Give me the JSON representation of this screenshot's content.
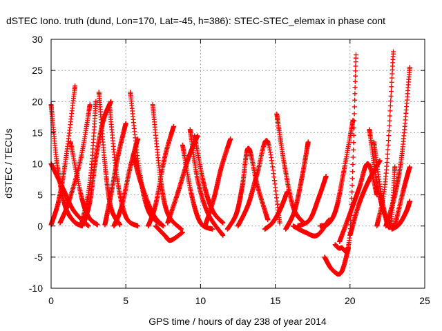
{
  "chart_data": {
    "type": "scatter",
    "title": "dSTEC Iono. truth (dund, Lon=170, Lat=-45, h=386): STEC-STEC_elemax in phase cont",
    "xlabel": "GPS time / hours of day 238 of year 2014",
    "ylabel": "dSTEC  / TECUs",
    "xlim": [
      0,
      25
    ],
    "ylim": [
      -10,
      30
    ],
    "x_ticks": [
      0,
      5,
      10,
      15,
      20,
      25
    ],
    "y_ticks": [
      -10,
      -5,
      0,
      5,
      10,
      15,
      20,
      25,
      30
    ],
    "grid": true,
    "marker": "+",
    "color": "#ff0000",
    "series": [
      {
        "x": [
          0.0,
          0.5,
          1.0,
          1.6
        ],
        "y": [
          0.2,
          4.0,
          11.0,
          22.5
        ]
      },
      {
        "x": [
          0.0,
          0.4,
          0.9,
          1.5,
          2.1
        ],
        "y": [
          19.5,
          10.0,
          3.5,
          0.8,
          0.0
        ]
      },
      {
        "x": [
          0.0,
          0.8,
          1.5,
          2.5
        ],
        "y": [
          10.0,
          6.0,
          2.5,
          0.0
        ]
      },
      {
        "x": [
          0.6,
          1.2,
          2.0,
          2.6
        ],
        "y": [
          0.5,
          4.0,
          11.0,
          19.5
        ]
      },
      {
        "x": [
          1.3,
          2.0,
          2.5,
          3.1
        ],
        "y": [
          13.5,
          5.0,
          1.5,
          0.2
        ]
      },
      {
        "x": [
          2.0,
          2.6,
          3.0
        ],
        "y": [
          0.0,
          7.0,
          20.0
        ]
      },
      {
        "x": [
          3.2,
          3.6,
          4.0,
          4.6
        ],
        "y": [
          21.5,
          10.0,
          3.0,
          0.2
        ]
      },
      {
        "x": [
          2.2,
          2.6,
          3.0,
          3.5,
          4.0
        ],
        "y": [
          0.5,
          4.0,
          11.0,
          17.0,
          20.0
        ]
      },
      {
        "x": [
          3.6,
          4.0,
          4.5,
          5.0
        ],
        "y": [
          0.2,
          5.0,
          11.5,
          16.5
        ]
      },
      {
        "x": [
          3.9,
          4.4,
          5.0,
          5.8
        ],
        "y": [
          19.5,
          8.0,
          1.5,
          0.0
        ]
      },
      {
        "x": [
          4.2,
          4.7,
          5.3,
          5.8
        ],
        "y": [
          0.0,
          3.0,
          9.5,
          14.0
        ]
      },
      {
        "x": [
          5.3,
          5.9,
          6.5,
          7.3
        ],
        "y": [
          21.5,
          9.0,
          2.5,
          0.3
        ]
      },
      {
        "x": [
          5.5,
          6.0,
          6.8,
          7.5
        ],
        "y": [
          11.5,
          7.0,
          2.0,
          0.0
        ]
      },
      {
        "x": [
          6.5,
          7.0,
          7.6,
          8.2
        ],
        "y": [
          0.0,
          3.5,
          11.0,
          16.0
        ]
      },
      {
        "x": [
          6.8,
          7.3,
          7.8,
          8.7
        ],
        "y": [
          19.5,
          8.0,
          2.0,
          -0.5
        ]
      },
      {
        "x": [
          7.0,
          7.6,
          8.0,
          8.8
        ],
        "y": [
          0.0,
          -1.5,
          -2.3,
          -1.0
        ]
      },
      {
        "x": [
          7.8,
          8.5,
          9.2,
          9.8
        ],
        "y": [
          0.5,
          5.5,
          11.0,
          14.5
        ]
      },
      {
        "x": [
          8.8,
          9.4,
          10.0,
          10.8
        ],
        "y": [
          13.0,
          5.0,
          0.5,
          -0.5
        ]
      },
      {
        "x": [
          9.3,
          9.8,
          10.5,
          11.5
        ],
        "y": [
          15.5,
          7.5,
          2.0,
          -1.5
        ]
      },
      {
        "x": [
          9.6,
          10.2,
          10.8,
          11.5
        ],
        "y": [
          14.5,
          7.0,
          2.5,
          0.5
        ]
      },
      {
        "x": [
          10.3,
          10.9,
          11.4,
          12.0
        ],
        "y": [
          0.0,
          4.5,
          9.5,
          14.0
        ]
      },
      {
        "x": [
          11.8,
          12.4,
          12.8,
          13.2,
          13.8,
          14.5
        ],
        "y": [
          -0.5,
          2.0,
          6.5,
          12.5,
          6.5,
          1.0
        ]
      },
      {
        "x": [
          12.5,
          13.2,
          13.8,
          14.5,
          15.3
        ],
        "y": [
          0.0,
          3.5,
          8.5,
          13.5,
          0.5
        ]
      },
      {
        "x": [
          14.3,
          14.8,
          15.3,
          15.8
        ],
        "y": [
          -0.5,
          0.5,
          2.5,
          5.5
        ]
      },
      {
        "x": [
          15.1,
          15.6,
          16.2,
          16.9
        ],
        "y": [
          18.0,
          10.0,
          3.0,
          0.5
        ]
      },
      {
        "x": [
          15.7,
          16.3,
          16.8,
          17.2
        ],
        "y": [
          -0.5,
          2.5,
          8.0,
          13.5
        ]
      },
      {
        "x": [
          16.2,
          17.0,
          17.8,
          18.6
        ],
        "y": [
          0.0,
          -1.0,
          -1.5,
          1.0
        ]
      },
      {
        "x": [
          16.5,
          17.3,
          17.9,
          18.4
        ],
        "y": [
          0.0,
          1.0,
          4.5,
          8.0
        ]
      },
      {
        "x": [
          18.0,
          18.6,
          19.1,
          19.6,
          20.2
        ],
        "y": [
          0.0,
          0.5,
          3.0,
          9.0,
          17.0
        ]
      },
      {
        "x": [
          18.3,
          18.8,
          19.4,
          19.9
        ],
        "y": [
          -5.0,
          -7.0,
          -7.5,
          -3.5
        ]
      },
      {
        "x": [
          19.0,
          19.4,
          20.0,
          20.4
        ],
        "y": [
          -3.0,
          -3.5,
          -1.0,
          27.5
        ]
      },
      {
        "x": [
          19.3,
          20.0,
          20.6,
          21.2,
          21.8
        ],
        "y": [
          -2.5,
          2.0,
          6.0,
          10.0,
          5.0
        ]
      },
      {
        "x": [
          20.0,
          20.6,
          21.3,
          22.0
        ],
        "y": [
          -1.5,
          3.5,
          7.5,
          10.5
        ]
      },
      {
        "x": [
          21.3,
          21.8,
          22.3,
          22.8
        ],
        "y": [
          15.5,
          7.0,
          2.0,
          0.0
        ]
      },
      {
        "x": [
          21.6,
          22.2,
          22.7,
          23.0
        ],
        "y": [
          13.5,
          3.5,
          0.0,
          9.5
        ]
      },
      {
        "x": [
          21.8,
          22.4,
          22.9
        ],
        "y": [
          0.0,
          8.0,
          28.0
        ]
      },
      {
        "x": [
          22.4,
          23.0,
          23.5,
          24.0
        ],
        "y": [
          0.0,
          5.0,
          12.0,
          25.5
        ]
      },
      {
        "x": [
          22.8,
          23.3,
          23.8,
          24.0
        ],
        "y": [
          -0.5,
          0.3,
          2.5,
          4.0
        ]
      },
      {
        "x": [
          23.0,
          23.6,
          24.0
        ],
        "y": [
          0.0,
          6.0,
          9.5
        ]
      }
    ]
  }
}
